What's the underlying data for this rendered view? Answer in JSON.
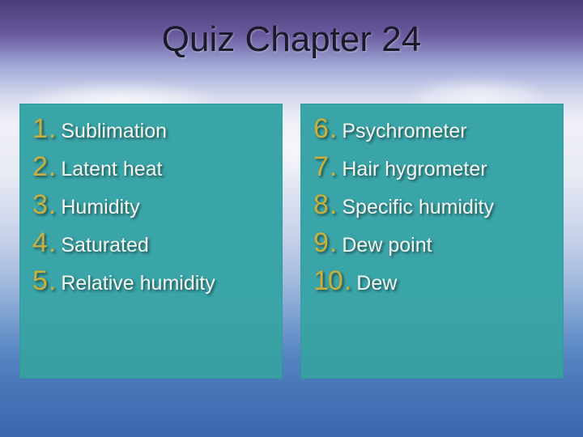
{
  "title": "Quiz Chapter 24",
  "colors": {
    "page_gradient_top": "#4a3d7a",
    "page_gradient_bottom": "#3a68ae",
    "panel_bg": "#3aa5a8",
    "number_color": "#c9b03c",
    "term_color": "#f5f5f0",
    "title_color": "#1a1a2a"
  },
  "typography": {
    "title_fontsize": 44,
    "number_fontsize": 34,
    "term_fontsize": 25
  },
  "left": {
    "items": [
      {
        "n": "1",
        "term": "Sublimation"
      },
      {
        "n": "2",
        "term": "Latent heat"
      },
      {
        "n": "3",
        "term": "Humidity"
      },
      {
        "n": "4",
        "term": "Saturated"
      },
      {
        "n": "5",
        "term": "Relative humidity"
      }
    ]
  },
  "right": {
    "items": [
      {
        "n": "6",
        "term": "Psychrometer"
      },
      {
        "n": "7",
        "term": "Hair hygrometer"
      },
      {
        "n": "8",
        "term": "Specific humidity"
      },
      {
        "n": "9",
        "term": "Dew point"
      },
      {
        "n": "10",
        "term": "Dew"
      }
    ]
  }
}
